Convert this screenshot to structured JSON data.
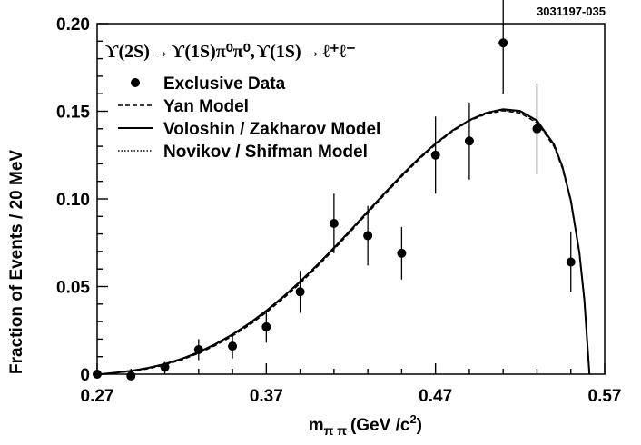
{
  "chart_data": {
    "type": "scatter",
    "figure_id": "3031197-035",
    "title": "ϒ(2S) → ϒ(1S)π⁰π⁰, ϒ(1S) → ℓ⁺ℓ⁻",
    "title_parts": {
      "decay1": "ϒ(2S)",
      "arrow": "→",
      "decay1_products": "ϒ(1S)π⁰π⁰,",
      "decay2": "ϒ(1S)",
      "decay2_products": "ℓ⁺ℓ⁻"
    },
    "xlabel": "mππ (GeV /c²)",
    "xlabel_parts": {
      "m": "m",
      "sub": "π π",
      "units": "(GeV /c",
      "sup": "2",
      "close": ")"
    },
    "ylabel": "Fraction of  Events / 20 MeV",
    "xlim": [
      0.27,
      0.57
    ],
    "ylim": [
      0,
      0.2
    ],
    "x_ticks": [
      0.27,
      0.37,
      0.47,
      0.57
    ],
    "x_tick_labels": [
      "0.27",
      "0.37",
      "0.47",
      "0.57"
    ],
    "y_ticks": [
      0,
      0.05,
      0.1,
      0.15,
      0.2
    ],
    "y_tick_labels": [
      "0",
      "0.05",
      "0.10",
      "0.15",
      "0.20"
    ],
    "legend": {
      "position": "top-left",
      "entries": [
        {
          "label": "Exclusive  Data",
          "style": "marker"
        },
        {
          "label": "Yan  Model",
          "style": "dashed"
        },
        {
          "label": "Voloshin / Zakharov  Model",
          "style": "solid"
        },
        {
          "label": "Novikov / Shifman  Model",
          "style": "dotted"
        }
      ]
    },
    "data_points": [
      {
        "x": 0.27,
        "y": 0.0,
        "err": 0.0
      },
      {
        "x": 0.29,
        "y": -0.001,
        "err": 0.0
      },
      {
        "x": 0.31,
        "y": 0.004,
        "err": 0.003
      },
      {
        "x": 0.33,
        "y": 0.014,
        "err": 0.006
      },
      {
        "x": 0.35,
        "y": 0.016,
        "err": 0.007
      },
      {
        "x": 0.37,
        "y": 0.027,
        "err": 0.009
      },
      {
        "x": 0.39,
        "y": 0.047,
        "err": 0.012
      },
      {
        "x": 0.41,
        "y": 0.086,
        "err": 0.017
      },
      {
        "x": 0.43,
        "y": 0.079,
        "err": 0.017
      },
      {
        "x": 0.45,
        "y": 0.069,
        "err": 0.015
      },
      {
        "x": 0.47,
        "y": 0.125,
        "err": 0.022
      },
      {
        "x": 0.49,
        "y": 0.133,
        "err": 0.022
      },
      {
        "x": 0.51,
        "y": 0.189,
        "err": 0.029
      },
      {
        "x": 0.53,
        "y": 0.14,
        "err": 0.026
      },
      {
        "x": 0.55,
        "y": 0.064,
        "err": 0.017
      }
    ],
    "series": [
      {
        "name": "Yan  Model",
        "style": "dashed",
        "x": [
          0.272,
          0.28,
          0.29,
          0.3,
          0.31,
          0.32,
          0.33,
          0.34,
          0.35,
          0.36,
          0.37,
          0.38,
          0.39,
          0.4,
          0.41,
          0.42,
          0.43,
          0.44,
          0.45,
          0.46,
          0.47,
          0.48,
          0.49,
          0.5,
          0.51,
          0.52,
          0.53,
          0.54,
          0.545,
          0.55,
          0.555,
          0.558,
          0.561
        ],
        "values": [
          0.0,
          0.0006,
          0.0016,
          0.0031,
          0.0053,
          0.0082,
          0.0119,
          0.0164,
          0.0218,
          0.028,
          0.0352,
          0.0431,
          0.0518,
          0.0612,
          0.0712,
          0.0815,
          0.092,
          0.1025,
          0.1127,
          0.1223,
          0.131,
          0.1385,
          0.1445,
          0.1485,
          0.1503,
          0.149,
          0.1434,
          0.13,
          0.1175,
          0.0985,
          0.069,
          0.042,
          0.0
        ]
      },
      {
        "name": "Voloshin / Zakharov  Model",
        "style": "solid",
        "x": [
          0.272,
          0.28,
          0.29,
          0.3,
          0.31,
          0.32,
          0.33,
          0.34,
          0.35,
          0.36,
          0.37,
          0.38,
          0.39,
          0.4,
          0.41,
          0.42,
          0.43,
          0.44,
          0.45,
          0.46,
          0.47,
          0.48,
          0.49,
          0.5,
          0.51,
          0.52,
          0.53,
          0.54,
          0.545,
          0.55,
          0.555,
          0.558,
          0.561
        ],
        "values": [
          0.0,
          0.0008,
          0.0019,
          0.0036,
          0.0058,
          0.0088,
          0.0126,
          0.0172,
          0.0227,
          0.029,
          0.0362,
          0.0442,
          0.0529,
          0.0622,
          0.0721,
          0.0824,
          0.0929,
          0.1034,
          0.1135,
          0.123,
          0.1316,
          0.139,
          0.1449,
          0.1491,
          0.1512,
          0.1502,
          0.1447,
          0.1312,
          0.1185,
          0.0992,
          0.0695,
          0.0425,
          0.0
        ]
      },
      {
        "name": "Novikov / Shifman  Model",
        "style": "dotted",
        "x": [
          0.272,
          0.28,
          0.29,
          0.3,
          0.31,
          0.32,
          0.33,
          0.34,
          0.35,
          0.36,
          0.37,
          0.38,
          0.39,
          0.4,
          0.41,
          0.42,
          0.43,
          0.44,
          0.45,
          0.46,
          0.47,
          0.48,
          0.49,
          0.5,
          0.51,
          0.52,
          0.53,
          0.54,
          0.545,
          0.55,
          0.555,
          0.558,
          0.561
        ],
        "values": [
          0.0,
          0.0007,
          0.0018,
          0.0034,
          0.0056,
          0.0085,
          0.0123,
          0.0169,
          0.0223,
          0.0286,
          0.0358,
          0.0438,
          0.0525,
          0.0618,
          0.0717,
          0.082,
          0.0925,
          0.103,
          0.1132,
          0.1227,
          0.1313,
          0.1388,
          0.1448,
          0.1488,
          0.1507,
          0.1495,
          0.144,
          0.1306,
          0.118,
          0.0988,
          0.0692,
          0.0422,
          0.0
        ]
      }
    ]
  }
}
